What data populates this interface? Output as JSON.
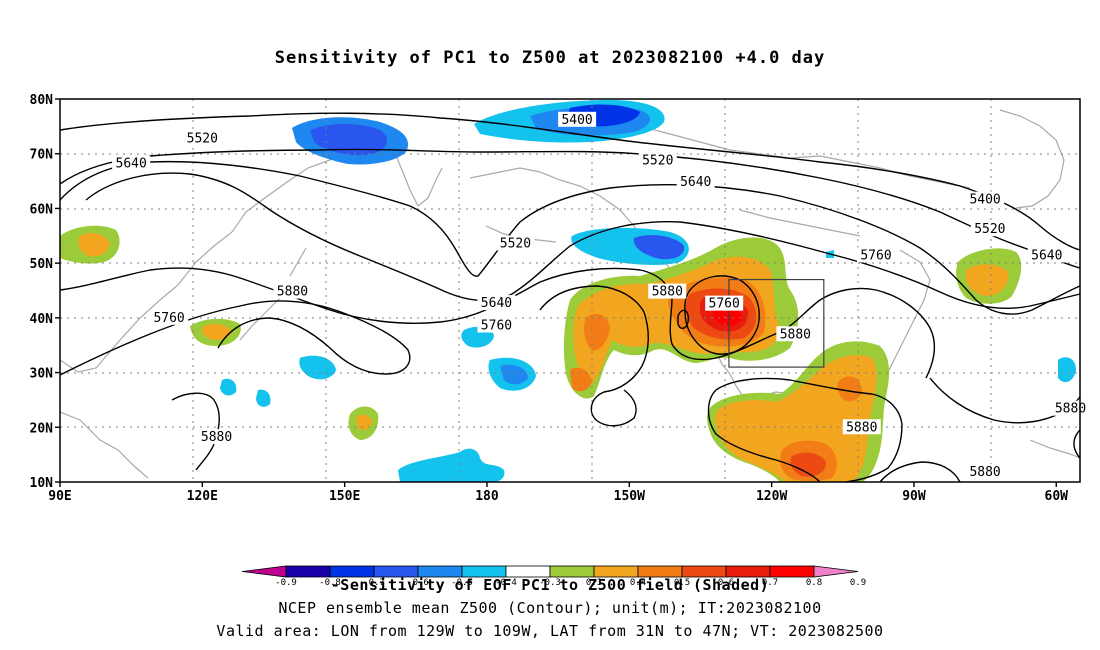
{
  "title": "Sensitivity of PC1 to Z500 at 2023082100 +4.0 day",
  "chart_data": {
    "type": "heatmap",
    "title": "Sensitivity of PC1 to Z500 at 2023082100 +4.0 day",
    "xlim": [
      90,
      305
    ],
    "ylim": [
      10,
      80
    ],
    "x_ticks": [
      {
        "lon": 90,
        "label": "90E"
      },
      {
        "lon": 120,
        "label": "120E"
      },
      {
        "lon": 150,
        "label": "150E"
      },
      {
        "lon": 180,
        "label": "180"
      },
      {
        "lon": 210,
        "label": "150W"
      },
      {
        "lon": 240,
        "label": "120W"
      },
      {
        "lon": 270,
        "label": "90W"
      },
      {
        "lon": 300,
        "label": "60W"
      }
    ],
    "y_ticks": [
      {
        "lat": 10,
        "label": "10N"
      },
      {
        "lat": 20,
        "label": "20N"
      },
      {
        "lat": 30,
        "label": "30N"
      },
      {
        "lat": 40,
        "label": "40N"
      },
      {
        "lat": 50,
        "label": "50N"
      },
      {
        "lat": 60,
        "label": "60N"
      },
      {
        "lat": 70,
        "label": "70N"
      },
      {
        "lat": 80,
        "label": "80N"
      }
    ],
    "grid": true,
    "colorbar": {
      "levels": [
        "-0.9",
        "-0.8",
        "-0.7",
        "-0.6",
        "-0.5",
        "-0.4",
        "-0.3",
        "0.3",
        "0.4",
        "0.5",
        "0.6",
        "0.7",
        "0.8",
        "0.9"
      ],
      "colors": [
        "#c0008f",
        "#1a00a8",
        "#0033e6",
        "#2a56f0",
        "#1e88f0",
        "#14c2ee",
        "#ffffff",
        "#9ccb3a",
        "#f2a51e",
        "#f27d16",
        "#ec4a12",
        "#e81c0c",
        "#ff0000",
        "#f080c8"
      ]
    },
    "contour_labels": [
      {
        "text": "5520",
        "lon": 120,
        "lat": 72.8
      },
      {
        "text": "5640",
        "lon": 105,
        "lat": 68.2
      },
      {
        "text": "5400",
        "lon": 199,
        "lat": 76.2
      },
      {
        "text": "5520",
        "lon": 216,
        "lat": 68.8
      },
      {
        "text": "5640",
        "lon": 224,
        "lat": 64.8
      },
      {
        "text": "5520",
        "lon": 186,
        "lat": 53.6
      },
      {
        "text": "5400",
        "lon": 285,
        "lat": 61.6
      },
      {
        "text": "5520",
        "lon": 286,
        "lat": 56.2
      },
      {
        "text": "5640",
        "lon": 298,
        "lat": 51.4
      },
      {
        "text": "5760",
        "lon": 262,
        "lat": 51.4
      },
      {
        "text": "5880",
        "lon": 139,
        "lat": 44.8
      },
      {
        "text": "5640",
        "lon": 182,
        "lat": 42.7
      },
      {
        "text": "5760",
        "lon": 182,
        "lat": 38.6
      },
      {
        "text": "5880",
        "lon": 218,
        "lat": 44.8
      },
      {
        "text": "5760",
        "lon": 230,
        "lat": 42.6
      },
      {
        "text": "5880",
        "lon": 245,
        "lat": 37.0
      },
      {
        "text": "5760",
        "lon": 113,
        "lat": 40.0
      },
      {
        "text": "5880",
        "lon": 123,
        "lat": 18.2
      },
      {
        "text": "5880",
        "lon": 259,
        "lat": 20.0
      },
      {
        "text": "5880",
        "lon": 303,
        "lat": 23.4
      },
      {
        "text": "5880",
        "lon": 285,
        "lat": 11.8
      }
    ],
    "target_box": {
      "lon_min": 231,
      "lon_max": 251,
      "lat_min": 31,
      "lat_max": 47
    }
  },
  "footer": {
    "line1": "-Sensitivity of EOF PC1 to Z500 field (Shaded)",
    "line2": "NCEP ensemble mean Z500 (Contour); unit(m); IT:2023082100",
    "line3": "Valid area: LON from 129W to 109W, LAT from 31N to 47N; VT: 2023082500"
  }
}
